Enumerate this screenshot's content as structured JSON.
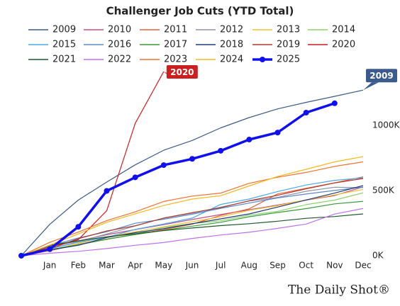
{
  "chart_data": {
    "type": "line",
    "title": "Challenger Job Cuts (YTD Total)",
    "categories": [
      null,
      "Jan",
      "Feb",
      "Mar",
      "Apr",
      "May",
      "Jun",
      "Jul",
      "Aug",
      "Sep",
      "Oct",
      "Nov",
      "Dec"
    ],
    "ylim": [
      0,
      1420
    ],
    "yticks": [
      {
        "value": 0,
        "label": "0K"
      },
      {
        "value": 500,
        "label": "500K"
      },
      {
        "value": 1000,
        "label": "1000K"
      }
    ],
    "series": [
      {
        "name": "2009",
        "color": "#3b5b8c",
        "values": [
          0,
          241,
          427,
          566,
          698,
          810,
          885,
          982,
          1061,
          1128,
          1178,
          1224,
          1272
        ]
      },
      {
        "name": "2010",
        "color": "#c0508a",
        "values": [
          0,
          70,
          113,
          161,
          201,
          239,
          278,
          316,
          353,
          389,
          427,
          462,
          529
        ]
      },
      {
        "name": "2011",
        "color": "#e8623c",
        "values": [
          0,
          38,
          88,
          128,
          164,
          201,
          242,
          309,
          360,
          475,
          518,
          560,
          606
        ]
      },
      {
        "name": "2012",
        "color": "#8a94a8",
        "values": [
          0,
          54,
          107,
          167,
          228,
          289,
          327,
          373,
          420,
          448,
          495,
          526,
          523
        ]
      },
      {
        "name": "2013",
        "color": "#f2c230",
        "values": [
          0,
          40,
          95,
          145,
          184,
          222,
          261,
          298,
          349,
          384,
          429,
          467,
          509
        ]
      },
      {
        "name": "2014",
        "color": "#8bd16a",
        "values": [
          0,
          45,
          86,
          125,
          165,
          217,
          247,
          268,
          311,
          341,
          392,
          427,
          483
        ]
      },
      {
        "name": "2015",
        "color": "#4aa8e8",
        "values": [
          0,
          53,
          104,
          141,
          202,
          244,
          289,
          394,
          435,
          493,
          543,
          579,
          598
        ]
      },
      {
        "name": "2016",
        "color": "#5a88c8",
        "values": [
          0,
          75,
          136,
          184,
          249,
          280,
          319,
          364,
          404,
          444,
          474,
          501,
          527
        ]
      },
      {
        "name": "2017",
        "color": "#3a9a3a",
        "values": [
          0,
          46,
          83,
          126,
          162,
          195,
          227,
          257,
          299,
          332,
          362,
          398,
          418
        ]
      },
      {
        "name": "2018",
        "color": "#1f3a7a",
        "values": [
          0,
          44,
          80,
          140,
          177,
          208,
          246,
          283,
          321,
          374,
          428,
          481,
          539
        ]
      },
      {
        "name": "2019",
        "color": "#b03a2a",
        "values": [
          0,
          53,
          130,
          190,
          230,
          289,
          331,
          369,
          422,
          464,
          514,
          559,
          593
        ]
      },
      {
        "name": "2020",
        "color": "#cc1f1f",
        "values": [
          0,
          67,
          123,
          346,
          1017,
          1414,
          null,
          null,
          null,
          null,
          null,
          null,
          null
        ]
      },
      {
        "name": "2021",
        "color": "#1f5a2a",
        "values": [
          0,
          80,
          114,
          145,
          168,
          193,
          213,
          231,
          246,
          265,
          287,
          301,
          321
        ]
      },
      {
        "name": "2022",
        "color": "#c070e8",
        "values": [
          0,
          19,
          34,
          55,
          80,
          101,
          133,
          159,
          180,
          210,
          243,
          320,
          363
        ]
      },
      {
        "name": "2023",
        "color": "#f07030",
        "values": [
          0,
          103,
          181,
          270,
          337,
          417,
          458,
          481,
          556,
          603,
          640,
          686,
          721
        ]
      },
      {
        "name": "2024",
        "color": "#f5b820",
        "values": [
          0,
          82,
          167,
          257,
          322,
          386,
          435,
          461,
          536,
          609,
          664,
          721,
          761
        ]
      },
      {
        "name": "2025",
        "color": "#1010ee",
        "values": [
          0,
          50,
          222,
          498,
          602,
          696,
          744,
          806,
          892,
          946,
          1099,
          1171,
          null
        ]
      }
    ],
    "highlight": "2025",
    "annotations": [
      "2020",
      "2009"
    ],
    "watermark": "The Daily Shot®"
  }
}
